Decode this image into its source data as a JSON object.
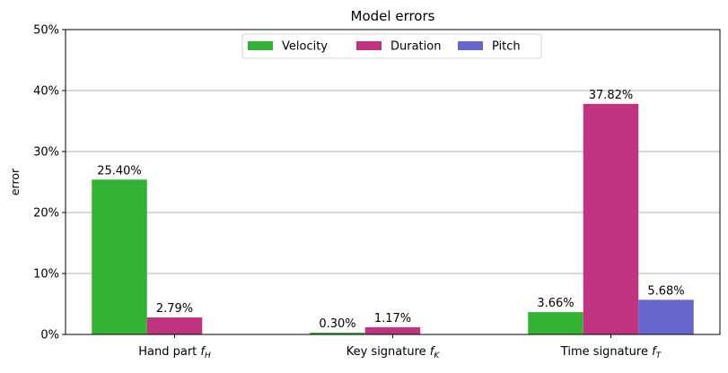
{
  "chart_data": {
    "type": "bar",
    "title": "Model errors",
    "xlabel": "",
    "ylabel": "error",
    "ylim": [
      0,
      50
    ],
    "yticks": [
      0,
      10,
      20,
      30,
      40,
      50
    ],
    "ytick_labels": [
      "0%",
      "10%",
      "20%",
      "30%",
      "40%",
      "50%"
    ],
    "grid": "horizontal",
    "legend_position": "top-center",
    "categories": [
      {
        "main": "Hand part ",
        "var": "f",
        "sub": "H"
      },
      {
        "main": "Key signature ",
        "var": "f",
        "sub": "K"
      },
      {
        "main": "Time signature ",
        "var": "f",
        "sub": "T"
      }
    ],
    "series": [
      {
        "name": "Velocity",
        "color": "#33b233",
        "values": [
          25.4,
          0.3,
          3.66
        ],
        "labels": [
          "25.40%",
          "0.30%",
          "3.66%"
        ]
      },
      {
        "name": "Duration",
        "color": "#bf3380",
        "values": [
          2.79,
          1.17,
          37.82
        ],
        "labels": [
          "2.79%",
          "1.17%",
          "37.82%"
        ]
      },
      {
        "name": "Pitch",
        "color": "#6666cc",
        "values": [
          null,
          null,
          5.68
        ],
        "labels": [
          null,
          null,
          "5.68%"
        ]
      }
    ]
  }
}
